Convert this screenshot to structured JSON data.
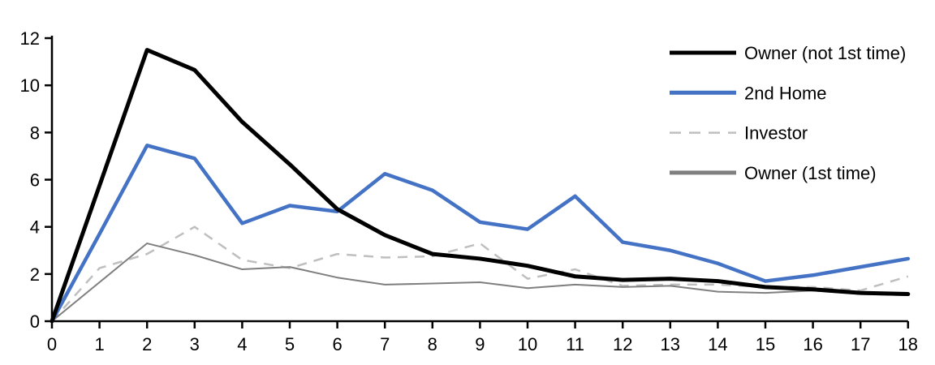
{
  "chart_data": {
    "type": "line",
    "title": "",
    "xlabel": "",
    "ylabel": "",
    "grid": false,
    "background": "#ffffff",
    "axis_color": "#000000",
    "legend_position": "top-right",
    "xlim": [
      0,
      18
    ],
    "ylim": [
      0,
      12
    ],
    "xticks": [
      0,
      1,
      2,
      3,
      4,
      5,
      6,
      7,
      8,
      9,
      10,
      11,
      12,
      13,
      14,
      15,
      16,
      17,
      18
    ],
    "yticks": [
      0,
      2,
      4,
      6,
      8,
      10,
      12
    ],
    "x": [
      0,
      1,
      2,
      3,
      4,
      5,
      6,
      7,
      8,
      9,
      10,
      11,
      12,
      13,
      14,
      15,
      16,
      17,
      18
    ],
    "series": [
      {
        "name": "Owner (not 1st time)",
        "color": "#000000",
        "width": 5,
        "dash": null,
        "values": [
          0,
          5.75,
          11.5,
          10.65,
          8.45,
          6.65,
          4.75,
          3.65,
          2.85,
          2.65,
          2.35,
          1.9,
          1.75,
          1.8,
          1.7,
          1.45,
          1.35,
          1.2,
          1.15
        ]
      },
      {
        "name": "2nd Home",
        "color": "#4472C4",
        "width": 4.5,
        "dash": null,
        "values": [
          0,
          3.7,
          7.45,
          6.9,
          4.15,
          4.9,
          4.65,
          6.25,
          5.55,
          4.2,
          3.9,
          5.3,
          3.35,
          3.0,
          2.45,
          1.7,
          1.95,
          2.3,
          2.65
        ]
      },
      {
        "name": "Investor",
        "color": "#BFBFBF",
        "width": 2.5,
        "dash": "12 9",
        "values": [
          0,
          2.25,
          2.85,
          4.0,
          2.6,
          2.25,
          2.85,
          2.7,
          2.75,
          3.3,
          1.8,
          2.2,
          1.5,
          1.55,
          1.55,
          1.45,
          1.45,
          1.3,
          1.9
        ]
      },
      {
        "name": "Owner (1st time)",
        "color": "#7F7F7F",
        "width": 2,
        "dash": null,
        "values": [
          0,
          1.65,
          3.3,
          2.8,
          2.2,
          2.3,
          1.85,
          1.55,
          1.6,
          1.65,
          1.4,
          1.55,
          1.45,
          1.5,
          1.25,
          1.2,
          1.3,
          1.15,
          1.1
        ]
      }
    ]
  }
}
